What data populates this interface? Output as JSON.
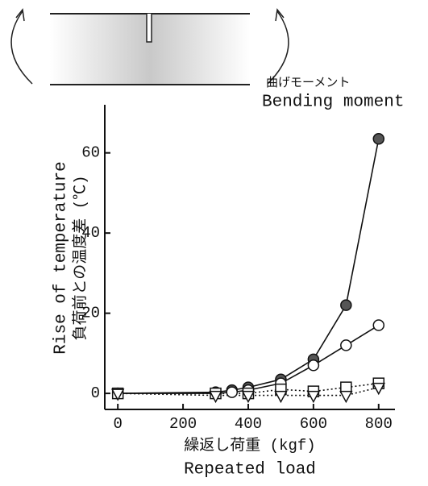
{
  "diagram": {
    "label_ja": "曲げモーメント",
    "label_en": "Bending moment"
  },
  "chart_data": {
    "type": "line",
    "ylabel": [
      "Rise of temperature",
      "負荷前との温度差 (℃)"
    ],
    "xlabel": [
      "繰返し荷重 (kgf)",
      "Repeated load"
    ],
    "xlim": [
      -40,
      850
    ],
    "xticks": [
      0,
      200,
      400,
      600,
      800
    ],
    "ylim": [
      -4,
      72
    ],
    "yticks": [
      0,
      20,
      40,
      60
    ],
    "series": [
      {
        "color": "#555555",
        "marker": "filled-circle",
        "linestyle": "solid",
        "x": [
          0,
          300,
          350,
          400,
          500,
          600,
          700,
          800
        ],
        "values": [
          0,
          0.3,
          0.8,
          1.5,
          3.5,
          8.5,
          22,
          63.5
        ]
      },
      {
        "color": "#ffffff",
        "marker": "open-circle",
        "linestyle": "solid",
        "x": [
          0,
          300,
          350,
          400,
          500,
          600,
          700,
          800
        ],
        "values": [
          0,
          0,
          0.3,
          0.8,
          2.5,
          7,
          12,
          17
        ]
      },
      {
        "color": "#ffffff",
        "marker": "open-square",
        "linestyle": "dotted",
        "x": [
          0,
          300,
          400,
          500,
          600,
          700,
          800
        ],
        "values": [
          0,
          0,
          0,
          1,
          0.5,
          1.5,
          2.5
        ]
      },
      {
        "color": "#ffffff",
        "marker": "open-triangle",
        "linestyle": "dotted",
        "x": [
          0,
          300,
          400,
          500,
          600,
          700,
          800
        ],
        "values": [
          0,
          -0.5,
          -0.5,
          -0.5,
          -0.5,
          -0.5,
          1.5
        ]
      }
    ]
  }
}
